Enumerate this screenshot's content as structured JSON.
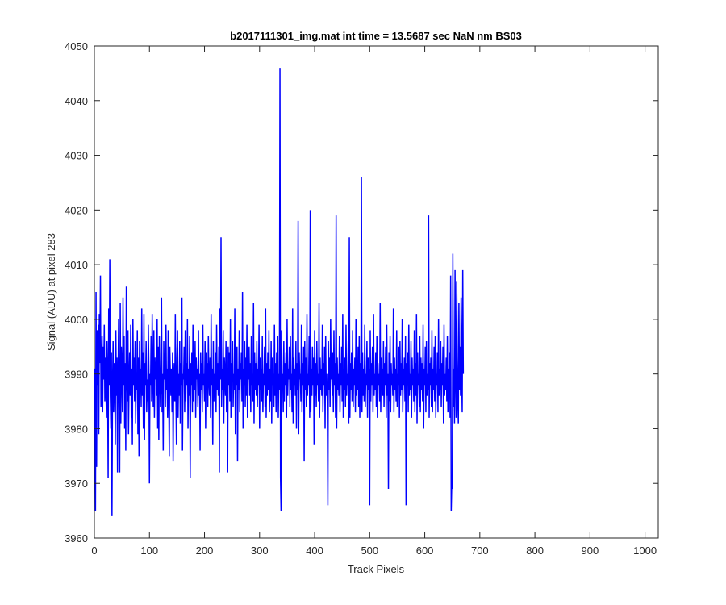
{
  "chart_data": {
    "type": "line",
    "title": "b2017111301_img.mat int time = 13.5687 sec  NaN nm BS03",
    "xlabel": "Track Pixels",
    "ylabel": "Signal (ADU) at pixel 283",
    "xlim": [
      0,
      1024
    ],
    "ylim": [
      3960,
      4050
    ],
    "x_ticks": [
      0,
      100,
      200,
      300,
      400,
      500,
      600,
      700,
      800,
      900,
      1000
    ],
    "y_ticks": [
      3960,
      3970,
      3980,
      3990,
      4000,
      4010,
      4020,
      4030,
      4040,
      4050
    ],
    "grid": false,
    "series": [
      {
        "color": "#0000ff",
        "x_start": 1,
        "x_step": 1,
        "values": [
          3991,
          3965,
          4005,
          3973,
          3998,
          3988,
          3999,
          3979,
          4001,
          3992,
          4008,
          3984,
          3990,
          3997,
          3983,
          3995,
          3989,
          3999,
          3985,
          3993,
          3987,
          3982,
          3996,
          3990,
          3971,
          4002,
          3988,
          4011,
          3986,
          3980,
          3994,
          3964,
          3988,
          3996,
          3983,
          3992,
          3990,
          3977,
          3998,
          3986,
          3993,
          3972,
          3989,
          4000,
          3984,
          3972,
          4003,
          3981,
          3995,
          3991,
          3983,
          4004,
          3988,
          3997,
          3980,
          3992,
          3976,
          4006,
          3990,
          3985,
          3998,
          3979,
          3989,
          3994,
          3986,
          3999,
          3982,
          3991,
          3977,
          4000,
          3988,
          3993,
          3985,
          3996,
          3981,
          3990,
          3987,
          3998,
          3979,
          3993,
          3975,
          3996,
          3989,
          3991,
          3984,
          4002,
          3986,
          3994,
          3980,
          4001,
          3978,
          3992,
          3988,
          3996,
          3983,
          3989,
          3985,
          3999,
          3991,
          3970,
          3990,
          3988,
          3997,
          3985,
          4001,
          3990,
          3984,
          3998,
          3982,
          3993,
          3989,
          3992,
          3986,
          4000,
          3980,
          3995,
          3978,
          3997,
          3991,
          3984,
          3988,
          4004,
          3983,
          3990,
          3976,
          3996,
          3989,
          3993,
          3984,
          3999,
          3987,
          3991,
          3982,
          3998,
          3988,
          3975,
          3995,
          3990,
          3986,
          3991,
          3983,
          3994,
          3974,
          3989,
          3992,
          3985,
          4001,
          3987,
          3977,
          3993,
          3998,
          3982,
          3990,
          3986,
          3996,
          3981,
          3992,
          3988,
          4004,
          3976,
          3990,
          3989,
          3995,
          3983,
          3998,
          3985,
          3992,
          3988,
          4000,
          3980,
          3991,
          3986,
          3997,
          3971,
          3992,
          3988,
          3994,
          3983,
          3999,
          3985,
          3990,
          3987,
          3996,
          3982,
          3993,
          3989,
          3991,
          3984,
          3998,
          3986,
          3990,
          3976,
          3994,
          3987,
          3992,
          3983,
          3999,
          3988,
          3990,
          3985,
          3996,
          3980,
          3994,
          3987,
          3992,
          3984,
          3997,
          3989,
          3986,
          3993,
          3982,
          4001,
          3988,
          3991,
          3977,
          3996,
          3985,
          3990,
          3989,
          3994,
          3983,
          3999,
          3987,
          3992,
          3986,
          3995,
          3972,
          4002,
          3989,
          4015,
          3984,
          3991,
          3987,
          3998,
          3981,
          3993,
          3990,
          3986,
          3996,
          3983,
          3991,
          3972,
          3995,
          3988,
          3994,
          3985,
          4000,
          3982,
          3992,
          3989,
          3996,
          3984,
          3990,
          3987,
          4002,
          3979,
          3993,
          3988,
          3995,
          3974,
          3991,
          3987,
          3998,
          3983,
          3992,
          3989,
          3994,
          3985,
          4005,
          3980,
          3991,
          3988,
          3996,
          3984,
          3993,
          3986,
          3999,
          3982,
          3990,
          3989,
          3995,
          3986,
          3992,
          3983,
          3997,
          3988,
          3990,
          3985,
          4003,
          3981,
          3994,
          3987,
          3992,
          3986,
          3996,
          3984,
          3991,
          3988,
          3999,
          3980,
          3993,
          3987,
          3991,
          3985,
          3997,
          3983,
          3990,
          3988,
          3995,
          3984,
          4002,
          3982,
          3992,
          3986,
          3994,
          3987,
          3998,
          3983,
          3991,
          3985,
          3996,
          3981,
          3993,
          3988,
          3990,
          3984,
          3999,
          3986,
          3992,
          3983,
          3994,
          3988,
          3997,
          3982,
          3990,
          3987,
          4046,
          3971,
          3965,
          3998,
          3987,
          3990,
          3983,
          3996,
          3985,
          3992,
          3988,
          3994,
          3982,
          4000,
          3986,
          3991,
          3989,
          3995,
          3984,
          3997,
          3987,
          3990,
          3983,
          4002,
          3981,
          3993,
          3988,
          3991,
          3986,
          3996,
          3980,
          3992,
          3987,
          4018,
          3979,
          3994,
          3989,
          3990,
          3985,
          3999,
          3983,
          3992,
          3988,
          3995,
          3974,
          3996,
          3987,
          3993,
          3984,
          4001,
          3986,
          3990,
          3988,
          3997,
          3982,
          4020,
          3983,
          3991,
          3986,
          3995,
          3988,
          3993,
          3977,
          3998,
          3986,
          3992,
          3984,
          3996,
          3988,
          3990,
          3985,
          4003,
          3982,
          3993,
          3987,
          3991,
          3986,
          3999,
          3983,
          3992,
          3988,
          3995,
          3980,
          3997,
          3986,
          3990,
          3985,
          3966,
          3996,
          3987,
          3993,
          3984,
          4000,
          3989,
          3991,
          3986,
          3994,
          3983,
          3998,
          3988,
          3992,
          3982,
          4019,
          3980,
          3993,
          3987,
          3990,
          3986,
          3997,
          3983,
          3992,
          3988,
          3995,
          3985,
          4001,
          3982,
          3991,
          3987,
          3993,
          3984,
          3999,
          3986,
          3990,
          3988,
          3996,
          3981,
          4015,
          3982,
          3992,
          3987,
          3994,
          3985,
          3998,
          3984,
          3991,
          3988,
          3993,
          3983,
          4000,
          3986,
          3990,
          3987,
          3995,
          3984,
          3997,
          3982,
          3992,
          3988,
          4026,
          3983,
          3994,
          3986,
          3991,
          3985,
          3999,
          3984,
          3990,
          3988,
          3996,
          3982,
          3993,
          3987,
          3991,
          3966,
          3998,
          3985,
          3992,
          3988,
          3995,
          3983,
          4001,
          3986,
          3990,
          3987,
          3994,
          3984,
          3997,
          3982,
          3992,
          3988,
          3990,
          3985,
          4003,
          3983,
          3993,
          3987,
          3991,
          3986,
          3996,
          3984,
          3992,
          3988,
          3995,
          3982,
          3999,
          3986,
          3990,
          3969,
          3994,
          3985,
          3997,
          3983,
          3992,
          3988,
          3990,
          3986,
          4002,
          3983,
          3993,
          3987,
          3991,
          3985,
          3998,
          3984,
          3990,
          3988,
          3995,
          3982,
          3996,
          3986,
          3992,
          3987,
          4000,
          3983,
          3991,
          3988,
          3993,
          3985,
          3997,
          3966,
          3992,
          3988,
          3994,
          3983,
          3999,
          3986,
          3990,
          3987,
          3996,
          3982,
          3993,
          3988,
          3991,
          3985,
          3998,
          3983,
          3992,
          3986,
          4001,
          3981,
          3994,
          3988,
          3990,
          3984,
          3997,
          3983,
          3993,
          3987,
          3992,
          3985,
          3999,
          3980,
          3991,
          3988,
          3995,
          3983,
          3996,
          3986,
          3990,
          3987,
          4019,
          3982,
          3992,
          3988,
          3993,
          3984,
          3998,
          3983,
          3991,
          3987,
          3995,
          3985,
          3997,
          3982,
          3990,
          3988,
          3994,
          3983,
          4000,
          3986,
          3991,
          3987,
          3996,
          3984,
          3992,
          3988,
          3995,
          3981,
          3999,
          3986,
          3990,
          3987,
          3993,
          3985,
          3997,
          3983,
          3991,
          3988,
          3994,
          3982,
          4008,
          3965,
          3970,
          3969,
          4012,
          3984,
          3991,
          3981,
          4009,
          3990,
          3982,
          4007,
          3993,
          3985,
          3981,
          4003,
          3987,
          3995,
          3986,
          4004,
          3991,
          3983,
          4009,
          3990
        ]
      }
    ]
  }
}
